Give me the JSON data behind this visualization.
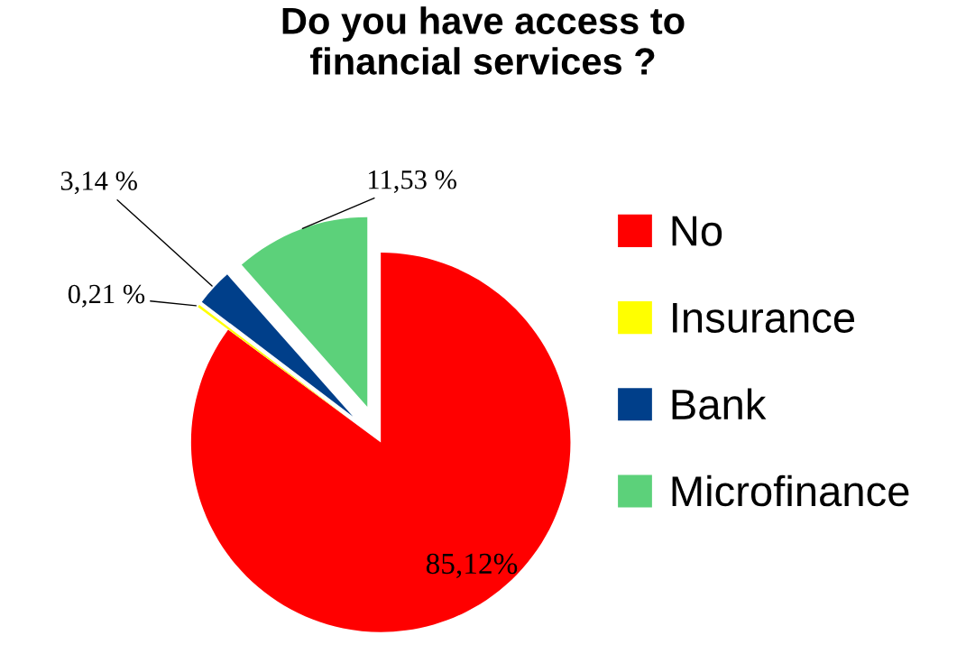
{
  "chart_data": {
    "type": "pie",
    "title": "Do you have access to\nfinancial services ?",
    "categories": [
      "No",
      "Insurance",
      "Bank",
      "Microfinance"
    ],
    "values": [
      85.12,
      0.21,
      3.14,
      11.53
    ],
    "colors": [
      "#ff0000",
      "#ffff00",
      "#003f8a",
      "#5cd17a"
    ],
    "value_labels": [
      "85,12%",
      "0,21 %",
      "3,14 %",
      "11,53 %"
    ],
    "legend": "right"
  }
}
